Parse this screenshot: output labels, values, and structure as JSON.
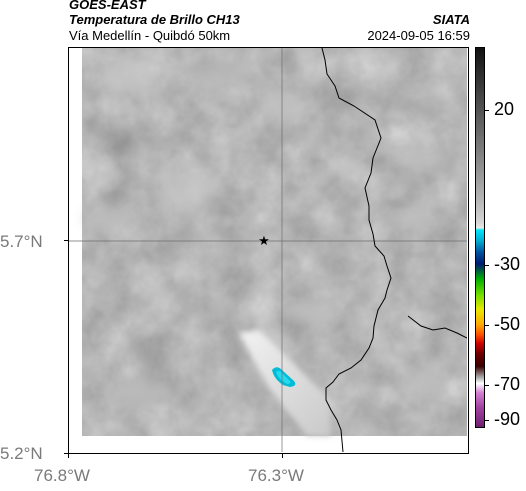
{
  "header": {
    "satellite": "GOES-EAST",
    "product": "Temperatura de Brillo CH13",
    "region": "Vía Medellín - Quibdó 50km",
    "agency": "SIATA",
    "datetime": "2024-09-05 16:59"
  },
  "map": {
    "lat_labels": [
      "5.7°N",
      "5.2°N"
    ],
    "lon_labels": [
      "76.8°W",
      "76.3°W"
    ],
    "marker": "star-marker"
  },
  "colorbar": {
    "labels": [
      "20",
      "-30",
      "-50",
      "-70",
      "-90"
    ]
  }
}
